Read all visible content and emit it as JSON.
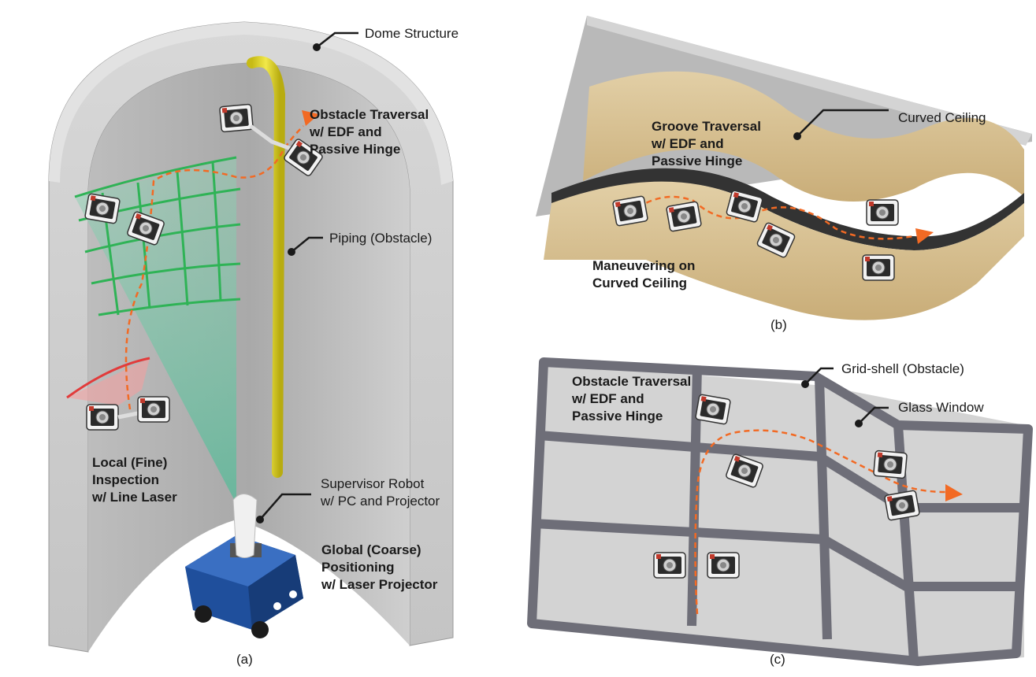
{
  "panel_a": {
    "caption": "(a)",
    "labels": {
      "dome_structure": "Dome Structure",
      "piping": "Piping (Obstacle)",
      "supervisor_robot": [
        "Supervisor Robot",
        "w/ PC and Projector"
      ],
      "obstacle_traversal": [
        "Obstacle Traversal",
        "w/ EDF and",
        "Passive Hinge"
      ],
      "local_inspection": [
        "Local (Fine)",
        "Inspection",
        "w/ Line Laser"
      ],
      "global_positioning": [
        "Global (Coarse)",
        "Positioning",
        "w/ Laser Projector"
      ]
    }
  },
  "panel_b": {
    "caption": "(b)",
    "labels": {
      "curved_ceiling": "Curved Ceiling",
      "groove_traversal": [
        "Groove Traversal",
        "w/ EDF and",
        "Passive Hinge"
      ],
      "maneuvering": [
        "Maneuvering on",
        "Curved Ceiling"
      ]
    }
  },
  "panel_c": {
    "caption": "(c)",
    "labels": {
      "grid_shell": "Grid-shell (Obstacle)",
      "glass_window": "Glass Window",
      "obstacle_traversal": [
        "Obstacle Traversal",
        "w/ EDF and",
        "Passive Hinge"
      ]
    }
  },
  "colors": {
    "path_orange": "#f26a24",
    "piping_yellow": "#e8dc2a",
    "laser_green": "#2fb356",
    "laser_red": "#e23b3b",
    "ceiling_tan": "#d9c193",
    "robot_blue": "#1f4f9c"
  }
}
